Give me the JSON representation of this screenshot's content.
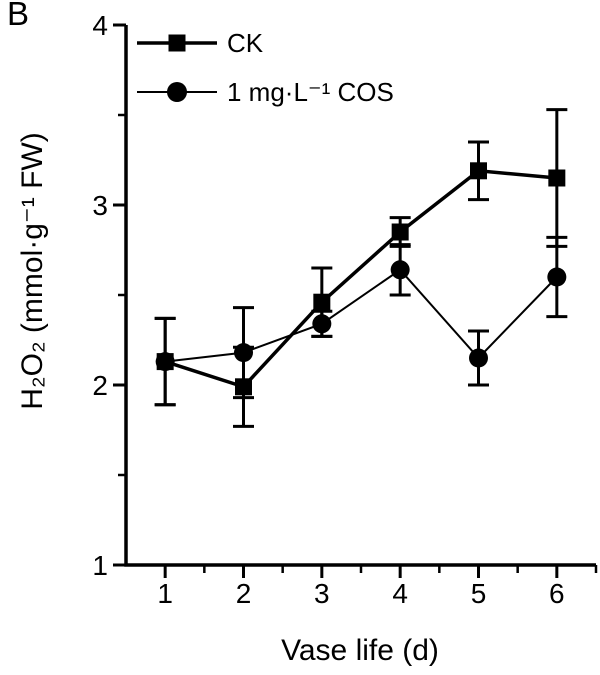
{
  "panel_label": "B",
  "colors": {
    "foreground": "#000000",
    "background": "#ffffff"
  },
  "chart_data": {
    "type": "line",
    "title": "",
    "xlabel": "Vase life (d)",
    "ylabel": "H₂O₂ (mmol·g⁻¹ FW)",
    "xlim": [
      0.5,
      6.5
    ],
    "ylim": [
      1,
      4
    ],
    "x": [
      1,
      2,
      3,
      4,
      5,
      6
    ],
    "x_major_ticks": [
      1,
      2,
      3,
      4,
      5,
      6
    ],
    "y_major_ticks": [
      1,
      2,
      3,
      4
    ],
    "minor_tick_step": 0.5,
    "grid": false,
    "legend_position": "top-left-inside",
    "series": [
      {
        "name": "CK",
        "marker": "square",
        "values": [
          2.13,
          1.99,
          2.46,
          2.85,
          3.19,
          3.15
        ],
        "errors": [
          0.24,
          0.22,
          0.19,
          0.08,
          0.16,
          0.38
        ]
      },
      {
        "name": "1 mg·L⁻¹ COS",
        "marker": "circle",
        "values": [
          2.13,
          2.18,
          2.34,
          2.64,
          2.15,
          2.6
        ],
        "errors": [
          0.24,
          0.25,
          0.07,
          0.14,
          0.15,
          0.22
        ]
      }
    ]
  }
}
